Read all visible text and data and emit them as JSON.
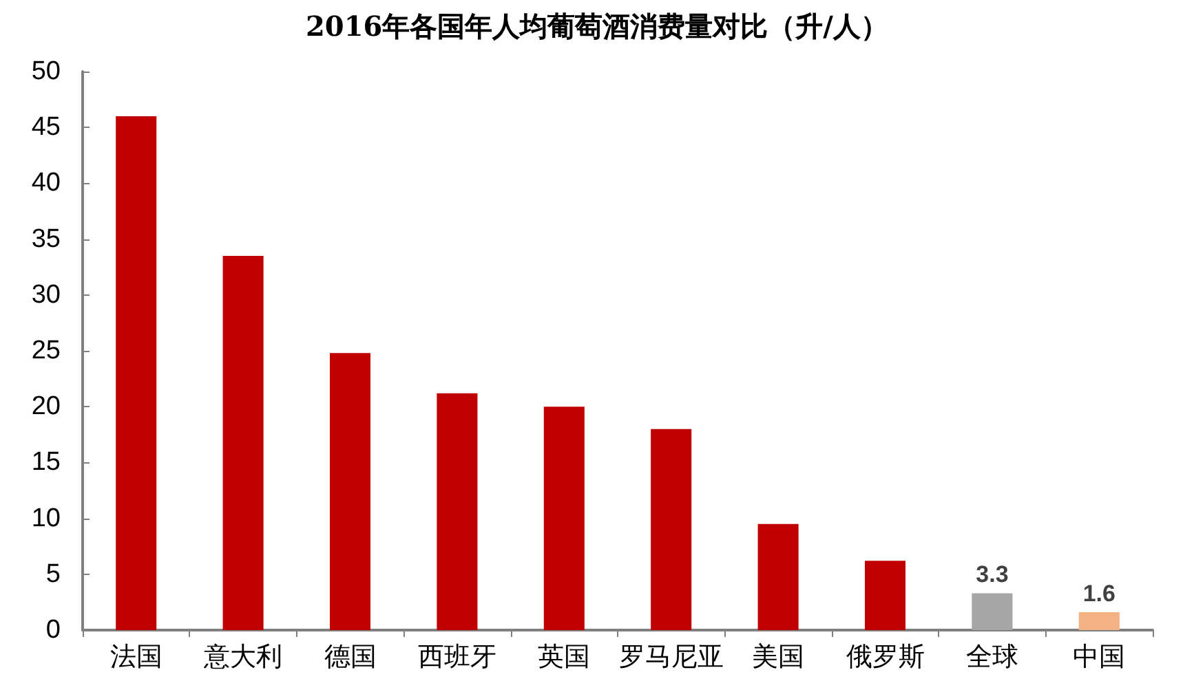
{
  "chart_data": {
    "type": "bar",
    "title": "2016年各国年人均葡萄酒消费量对比（升/人）",
    "categories": [
      "法国",
      "意大利",
      "德国",
      "西班牙",
      "英国",
      "罗马尼亚",
      "美国",
      "俄罗斯",
      "全球",
      "中国"
    ],
    "values": [
      46,
      33.5,
      24.8,
      21.2,
      20,
      18,
      9.5,
      6.2,
      3.3,
      1.6
    ],
    "colors": [
      "#c00000",
      "#c00000",
      "#c00000",
      "#c00000",
      "#c00000",
      "#c00000",
      "#c00000",
      "#c00000",
      "#a6a6a6",
      "#f4b183"
    ],
    "value_labels": [
      null,
      null,
      null,
      null,
      null,
      null,
      null,
      null,
      "3.3",
      "1.6"
    ],
    "ylim": [
      0,
      50
    ],
    "yticks": [
      0,
      5,
      10,
      15,
      20,
      25,
      30,
      35,
      40,
      45,
      50
    ],
    "grid": false
  }
}
